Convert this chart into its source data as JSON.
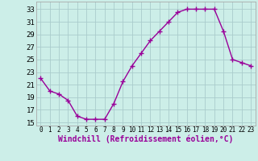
{
  "x": [
    0,
    1,
    2,
    3,
    4,
    5,
    6,
    7,
    8,
    9,
    10,
    11,
    12,
    13,
    14,
    15,
    16,
    17,
    18,
    19,
    20,
    21,
    22,
    23
  ],
  "y": [
    22,
    20,
    19.5,
    18.5,
    16,
    15.5,
    15.5,
    15.5,
    18,
    21.5,
    24,
    26,
    28,
    29.5,
    31,
    32.5,
    33,
    33,
    33,
    33,
    29.5,
    25,
    24.5,
    24
  ],
  "line_color": "#990099",
  "marker": "+",
  "marker_size": 4,
  "background_color": "#cceee8",
  "grid_color": "#aacccc",
  "xlabel": "Windchill (Refroidissement éolien,°C)",
  "xlabel_fontsize": 7,
  "yticks": [
    15,
    17,
    19,
    21,
    23,
    25,
    27,
    29,
    31,
    33
  ],
  "xticks": [
    0,
    1,
    2,
    3,
    4,
    5,
    6,
    7,
    8,
    9,
    10,
    11,
    12,
    13,
    14,
    15,
    16,
    17,
    18,
    19,
    20,
    21,
    22,
    23
  ],
  "ylim": [
    14.5,
    34.2
  ],
  "xlim": [
    -0.5,
    23.5
  ]
}
